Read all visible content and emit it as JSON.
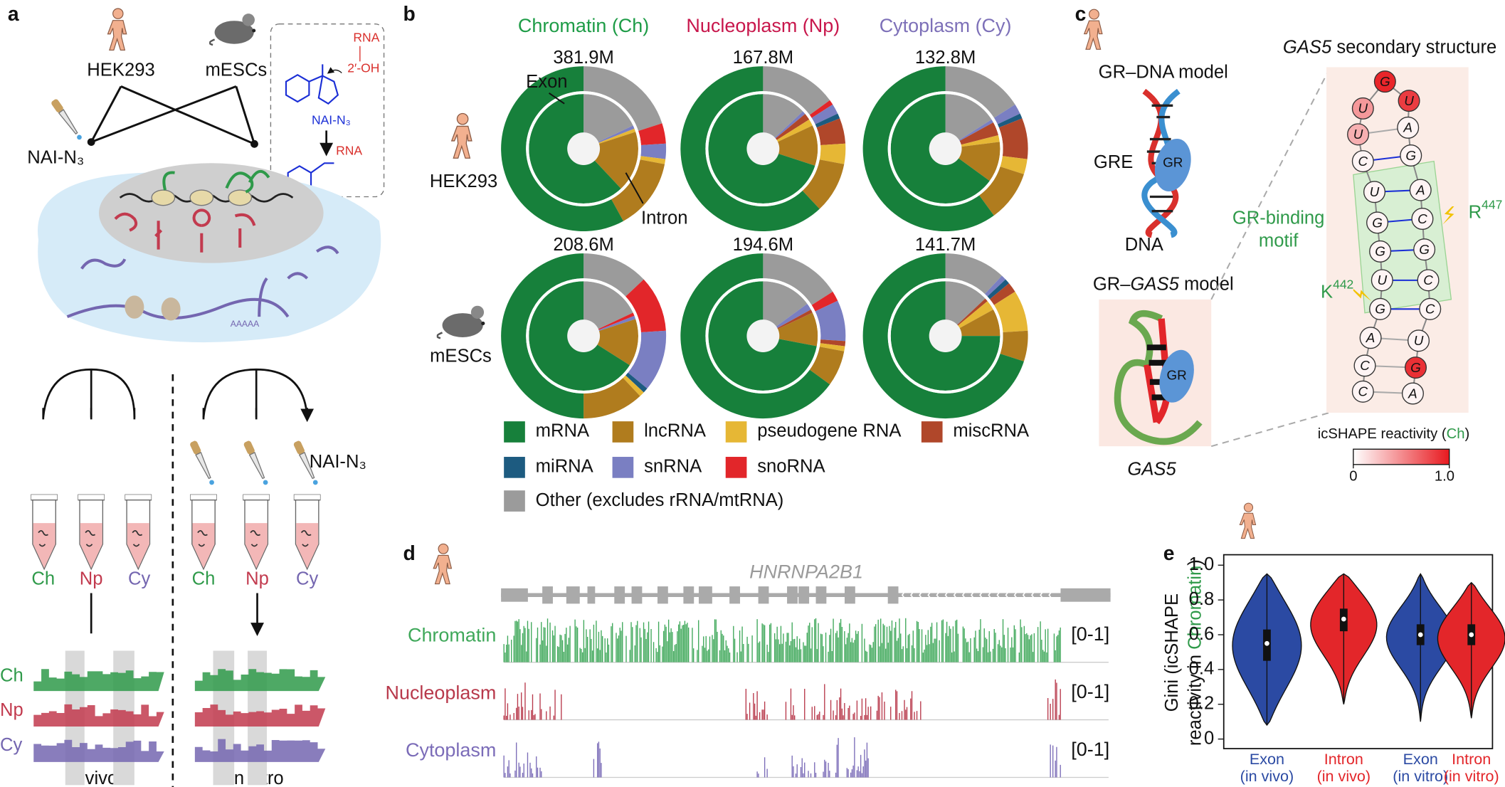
{
  "panel_labels": [
    "a",
    "b",
    "c",
    "d",
    "e"
  ],
  "a": {
    "cells": [
      "HEK293",
      "mESCs"
    ],
    "reagent": "NAI-N₃",
    "chem": {
      "rna_top": "RNA",
      "hydroxyl": "2′-OH",
      "rna_product": "RNA"
    },
    "polya": "AAAAA",
    "fractions": [
      "Ch",
      "Np",
      "Cy"
    ],
    "fraction_colors": [
      "#2f9a4a",
      "#c23a4e",
      "#7466b0"
    ],
    "conditions": [
      "In vivo",
      "In vitro"
    ]
  },
  "b": {
    "headers": [
      {
        "text": "Chromatin (Ch)",
        "color": "#1e9c47"
      },
      {
        "text": "Nucleoplasm (Np)",
        "color": "#c8174c"
      },
      {
        "text": "Cytoplasm (Cy)",
        "color": "#7d70b8"
      }
    ],
    "exon": "Exon",
    "intron": "Intron",
    "cells": [
      "HEK293",
      "mESCs"
    ],
    "legend": [
      {
        "name": "mRNA",
        "color": "#17803b"
      },
      {
        "name": "lncRNA",
        "color": "#b07c1e"
      },
      {
        "name": "pseudogene RNA",
        "color": "#e6b735"
      },
      {
        "name": "miscRNA",
        "color": "#b0472a"
      },
      {
        "name": "miRNA",
        "color": "#1d5b80"
      },
      {
        "name": "snRNA",
        "color": "#7a7fc2"
      },
      {
        "name": "snoRNA",
        "color": "#e2262a"
      },
      {
        "name": "Other (excludes rRNA/mtRNA)",
        "color": "#9b9b9b"
      }
    ]
  },
  "c": {
    "gr_dna_title": "GR–DNA model",
    "gre": "GRE",
    "gr": "GR",
    "dna": "DNA",
    "gr_gas5_title": [
      "GR–",
      "GAS5",
      " model"
    ],
    "gas5": "GAS5",
    "structure_title": [
      "GAS5",
      " secondary structure"
    ],
    "motif": [
      "GR-binding",
      "motif"
    ],
    "residues": [
      {
        "aa": "R",
        "num": "447"
      },
      {
        "aa": "K",
        "num": "442"
      }
    ],
    "nucleotides": {
      "bases": [
        "C",
        "C",
        "A",
        "G",
        "U",
        "G",
        "G",
        "U",
        "C",
        "U",
        "U",
        "G",
        "U",
        "A",
        "G",
        "A",
        "C",
        "G",
        "C",
        "C",
        "U",
        "G",
        "A"
      ],
      "reactivity": [
        0.05,
        0.05,
        0.05,
        0.05,
        0.05,
        0.05,
        0.05,
        0.05,
        0.05,
        0.35,
        0.45,
        0.95,
        0.85,
        0.05,
        0.05,
        0.05,
        0.05,
        0.05,
        0.05,
        0.05,
        0.05,
        0.9,
        0.05
      ]
    },
    "colorbar": {
      "label": [
        "icSHAPE reactivity (",
        "Ch",
        ")"
      ],
      "range": [
        0,
        1
      ],
      "ticks": [
        0,
        {
          "value": 1,
          "label": "1.0"
        }
      ]
    }
  },
  "d": {
    "gene": "HNRNPA2B1",
    "tracks": [
      {
        "name": "Chromatin",
        "range": "[0-1]",
        "color": "#3fa85a"
      },
      {
        "name": "Nucleoplasm",
        "range": "[0-1]",
        "color": "#b8394b"
      },
      {
        "name": "Cytoplasm",
        "range": "[0-1]",
        "color": "#7b6cb8"
      }
    ]
  },
  "chart_data": [
    {
      "type": "pie",
      "title": "381.9M",
      "values": [
        58,
        14,
        1,
        0,
        0,
        3,
        4,
        20
      ],
      "inner_values": [
        62,
        18,
        1,
        0,
        0,
        1,
        0,
        18
      ]
    },
    {
      "type": "pie",
      "title": "167.8M",
      "values": [
        62,
        10,
        4,
        5,
        1,
        2,
        1,
        15
      ],
      "inner_values": [
        70,
        12,
        2,
        2,
        0,
        1,
        0,
        13
      ]
    },
    {
      "type": "pie",
      "title": "132.8M",
      "values": [
        60,
        10,
        3,
        8,
        1,
        2,
        0,
        16
      ],
      "inner_values": [
        65,
        12,
        2,
        4,
        0,
        1,
        0,
        16
      ]
    },
    {
      "type": "pie",
      "title": "208.6M",
      "values": [
        50,
        12,
        1,
        0,
        1,
        12,
        11,
        13
      ],
      "inner_values": [
        66,
        14,
        0,
        0,
        0,
        1,
        1,
        18
      ]
    },
    {
      "type": "pie",
      "title": "194.6M",
      "values": [
        65,
        7,
        1,
        1,
        0,
        8,
        2,
        16
      ],
      "inner_values": [
        72,
        10,
        0,
        1,
        0,
        2,
        0,
        15
      ]
    },
    {
      "type": "pie",
      "title": "141.7M",
      "values": [
        70,
        6,
        8,
        2,
        1,
        1,
        0,
        12
      ],
      "inner_values": [
        75,
        8,
        3,
        1,
        0,
        0,
        0,
        13
      ]
    },
    {
      "type": "violin",
      "ylabel": {
        "line1": "Gini (icSHAPE",
        "line2": [
          "reactivity in ",
          "Chromatin",
          ")"
        ]
      },
      "categories": [
        [
          "Exon",
          "(in vivo)"
        ],
        [
          "Intron",
          "(in vivo)"
        ],
        [
          "Exon",
          "(in vitro)"
        ],
        [
          "Intron",
          "(in vitro)"
        ]
      ],
      "colors": [
        "#2b4aa3",
        "#e3262a",
        "#2b4aa3",
        "#e3262a"
      ],
      "min": [
        0.08,
        0.2,
        0.1,
        0.12
      ],
      "q1": [
        0.45,
        0.62,
        0.54,
        0.54
      ],
      "median": [
        0.55,
        0.69,
        0.6,
        0.6
      ],
      "q3": [
        0.63,
        0.75,
        0.66,
        0.66
      ],
      "max": [
        0.95,
        0.95,
        0.95,
        0.9
      ],
      "ylim": [
        -0.055,
        1.06
      ],
      "yticks": [
        0,
        0.2,
        0.4,
        0.6,
        0.8,
        {
          "value": 1,
          "label": "1.0"
        }
      ]
    }
  ]
}
